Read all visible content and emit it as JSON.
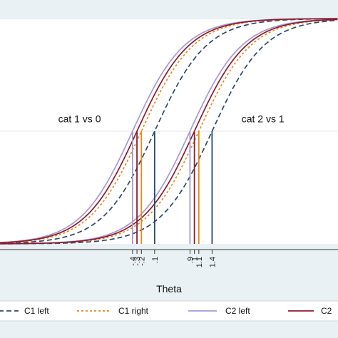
{
  "chart_data": {
    "type": "line",
    "xlabel": "Theta",
    "ylabel": "",
    "title": "",
    "xlim": [
      -3.4,
      4.25
    ],
    "ylim": [
      0,
      1
    ],
    "grid": true,
    "legend_position": "bottom",
    "annotations": [
      {
        "text": "cat 1 vs 0",
        "x": -1.6,
        "y": 0.54
      },
      {
        "text": "cat 2 vs 1",
        "x": 2.55,
        "y": 0.54
      }
    ],
    "series": [
      {
        "name": "C1 left",
        "color": "#2b4a6b",
        "dash": "dashed",
        "thresholds": [
          0.1,
          1.4
        ]
      },
      {
        "name": "C1 right",
        "color": "#e08a1a",
        "dash": "dotted",
        "thresholds": [
          -0.2,
          1.1
        ]
      },
      {
        "name": "C2 left",
        "color": "#a898d0",
        "dash": "solid",
        "thresholds": [
          -0.4,
          0.9
        ]
      },
      {
        "name": "C2",
        "color": "#8b1a2e",
        "dash": "solid",
        "thresholds": [
          -0.3,
          1.0
        ]
      }
    ],
    "x_tick_labels": [
      "-.4",
      "-.3",
      "-.2",
      ".1",
      ".9",
      "1",
      "1.1",
      "1.4"
    ],
    "x_tick_values": [
      -0.4,
      -0.3,
      -0.2,
      0.1,
      0.9,
      1.0,
      1.1,
      1.4
    ]
  }
}
